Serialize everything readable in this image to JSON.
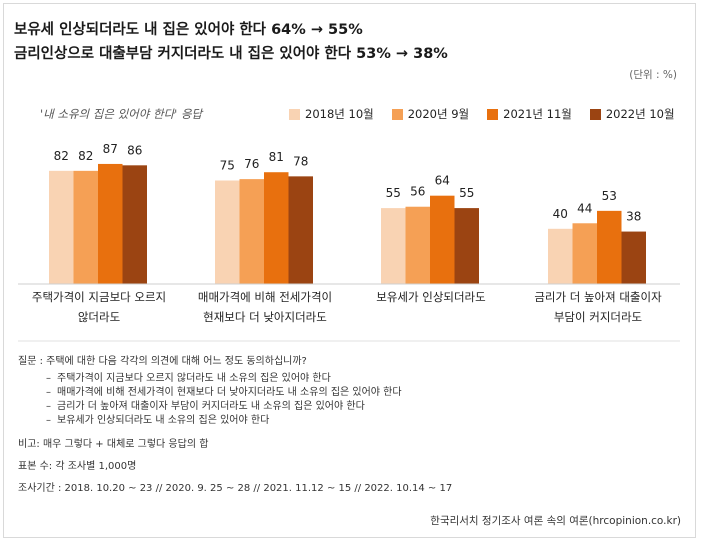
{
  "titles": {
    "line1": "보유세 인상되더라도 내 집은 있어야 한다 64% → 55%",
    "line2": "금리인상으로 대출부담 커지더라도 내 집은 있어야 한다 53% → 38%"
  },
  "unit": "(단위 : %)",
  "subtitle": "'내 소유의 집은 있어야 한다' 응답",
  "chart_data": {
    "type": "bar",
    "categories": [
      [
        "주택가격이 지금보다 오르지",
        "않더라도"
      ],
      [
        "매매가격에 비해 전세가격이",
        "현재보다 더 낮아지더라도"
      ],
      [
        "보유세가 인상되더라도"
      ],
      [
        "금리가 더 높아져 대출이자",
        "부담이 커지더라도"
      ]
    ],
    "series": [
      {
        "name": "2018년 10월",
        "color": "#f9d3b3",
        "values": [
          82,
          75,
          55,
          40
        ]
      },
      {
        "name": "2020년 9월",
        "color": "#f5a055",
        "values": [
          82,
          76,
          56,
          44
        ]
      },
      {
        "name": "2021년 11월",
        "color": "#e8700e",
        "values": [
          87,
          81,
          64,
          53
        ]
      },
      {
        "name": "2022년 10월",
        "color": "#9b4412",
        "values": [
          86,
          78,
          55,
          38
        ]
      }
    ],
    "ylim": [
      0,
      100
    ],
    "grid": false,
    "legend": "top-right"
  },
  "notes": {
    "question": "질문 : 주택에 대한 다음 각각의 의견에 대해 어느 정도 동의하십니까?",
    "items": [
      "주택가격이 지금보다 오르지 않더라도 내 소유의 집은 있어야 한다",
      "매매가격에 비해 전세가격이 현재보다 더 낮아지더라도 내 소유의 집은 있어야 한다",
      "금리가 더 높아져 대출이자 부담이 커지더라도 내 소유의 집은 있어야 한다",
      "보유세가 인상되더라도 내 소유의 집은 있어야 한다"
    ],
    "note1": "비고: 매우 그렇다 + 대체로 그렇다 응답의 합",
    "note2": "표본 수: 각 조사별 1,000명",
    "note3": "조사기간 : 2018. 10.20 ~ 23 // 2020. 9. 25 ~ 28 // 2021. 11.12 ~ 15 // 2022. 10.14 ~ 17"
  },
  "source": "한국리서치 정기조사 여론 속의 여론(hrcopinion.co.kr)"
}
